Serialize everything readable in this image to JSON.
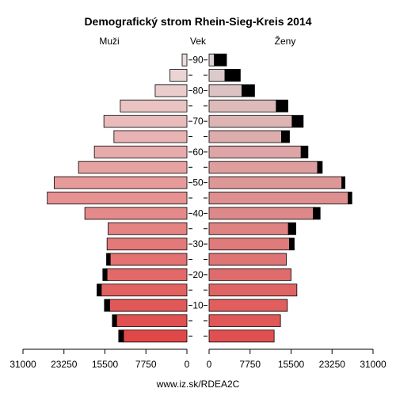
{
  "chart_data": {
    "type": "bar",
    "title": "Demografický strom Rhein-Sieg-Kreis 2014",
    "left_label": "Muži",
    "center_label": "Vek",
    "right_label": "Ženy",
    "footer": "www.iz.sk/RDEA2C",
    "x_ticks_left": [
      "31000",
      "23250",
      "15500",
      "7750",
      "0"
    ],
    "x_ticks_right": [
      "0",
      "7750",
      "15500",
      "23250",
      "31000"
    ],
    "x_tick_values": [
      31000,
      23250,
      15500,
      7750,
      0
    ],
    "xlim": [
      0,
      31000
    ],
    "age_ticks": [
      "90",
      "80",
      "70",
      "60",
      "50",
      "40",
      "30",
      "20",
      "10"
    ],
    "age_groups": [
      "0-4",
      "5-9",
      "10-14",
      "15-19",
      "20-24",
      "25-29",
      "30-34",
      "35-39",
      "40-44",
      "45-49",
      "50-54",
      "55-59",
      "60-64",
      "65-69",
      "70-74",
      "75-79",
      "80-84",
      "85-89",
      "90+"
    ],
    "male": [
      12000,
      13300,
      14600,
      16200,
      15100,
      14500,
      15100,
      14900,
      19300,
      26400,
      25100,
      20500,
      17500,
      13800,
      15700,
      12600,
      6000,
      3200,
      900
    ],
    "male_excess": [
      900,
      800,
      1000,
      800,
      800,
      700,
      0,
      0,
      0,
      0,
      0,
      0,
      0,
      0,
      0,
      0,
      0,
      0,
      0
    ],
    "female": [
      12300,
      13500,
      14800,
      16600,
      15500,
      14600,
      15200,
      15000,
      19700,
      26300,
      25100,
      20500,
      17400,
      13700,
      15700,
      12700,
      6200,
      3000,
      1000
    ],
    "female_excess": [
      0,
      0,
      0,
      0,
      0,
      0,
      900,
      1400,
      1300,
      700,
      600,
      900,
      1300,
      1500,
      2100,
      2200,
      2400,
      2900,
      2300
    ],
    "colors": {
      "male_young": "#e04848",
      "male_old": "#ecdcdc",
      "female_young": "#e05050",
      "female_old": "#dcd0d0",
      "excess": "#000000"
    }
  }
}
